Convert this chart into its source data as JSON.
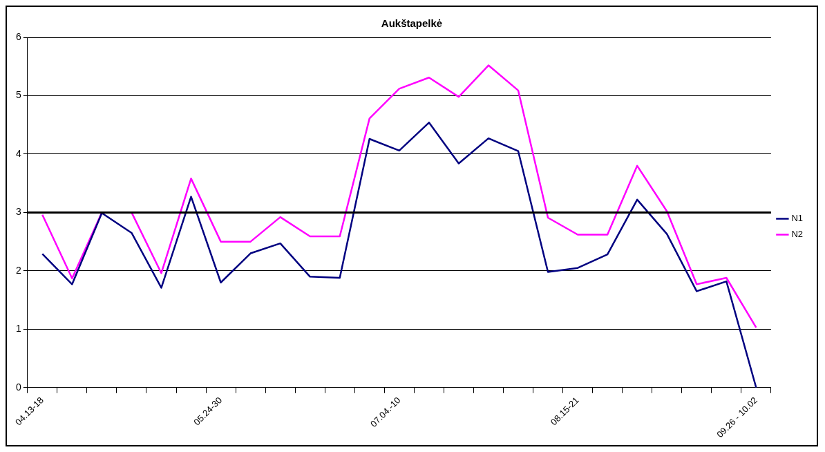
{
  "chart_data": {
    "type": "line",
    "title": "Aukštapelkė",
    "categories": [
      "04.13-18",
      null,
      null,
      null,
      null,
      null,
      "05.24-30",
      null,
      null,
      null,
      null,
      null,
      "07.04.-10",
      null,
      null,
      null,
      null,
      null,
      "08.15-21",
      null,
      null,
      null,
      null,
      null,
      "09.26 - 10.02"
    ],
    "series": [
      {
        "name": "N1",
        "color": "#000080",
        "values": [
          2.29,
          1.77,
          2.99,
          2.65,
          1.71,
          3.27,
          1.8,
          2.3,
          2.47,
          1.9,
          1.88,
          4.26,
          4.06,
          4.54,
          3.84,
          4.27,
          4.05,
          1.98,
          2.05,
          2.28,
          3.22,
          2.63,
          1.65,
          1.82,
          0
        ]
      },
      {
        "name": "N2",
        "color": "#ff00ff",
        "values": [
          2.96,
          1.87,
          3.0,
          3.0,
          1.96,
          3.58,
          2.5,
          2.5,
          2.92,
          2.59,
          2.59,
          4.61,
          5.12,
          5.31,
          4.98,
          5.52,
          5.09,
          2.91,
          2.62,
          2.62,
          3.8,
          3.02,
          1.77,
          1.88,
          1.03
        ]
      }
    ],
    "ylim": [
      0,
      6
    ],
    "yticks": [
      0,
      1,
      2,
      3,
      4,
      5,
      6
    ],
    "grid": "y",
    "legend": "right",
    "marker": "none",
    "line_style": "solid",
    "ref_lines": [
      {
        "axis": "y",
        "value": 3,
        "color": "#000000"
      }
    ]
  }
}
